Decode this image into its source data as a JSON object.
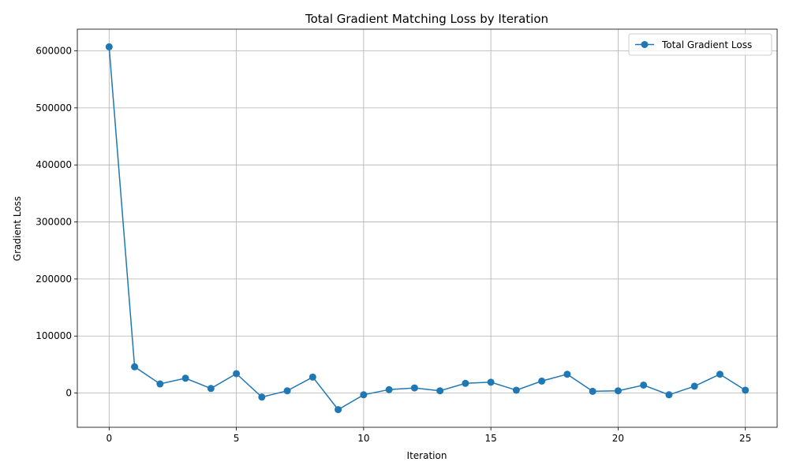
{
  "chart_data": {
    "type": "line",
    "title": "Total Gradient Matching Loss by Iteration",
    "xlabel": "Iteration",
    "ylabel": "Gradient Loss",
    "xlim": [
      -1.25,
      26.25
    ],
    "ylim": [
      -60000,
      638000
    ],
    "xticks": [
      0,
      5,
      10,
      15,
      20,
      25
    ],
    "yticks": [
      0,
      100000,
      200000,
      300000,
      400000,
      500000,
      600000
    ],
    "grid": true,
    "legend_position": "top-right",
    "color": "#1f77b4",
    "series": [
      {
        "name": "Total Gradient Loss",
        "x": [
          0,
          1,
          2,
          3,
          4,
          5,
          6,
          7,
          8,
          9,
          10,
          11,
          12,
          13,
          14,
          15,
          16,
          17,
          18,
          19,
          20,
          21,
          22,
          23,
          24,
          25
        ],
        "y": [
          607000,
          46000,
          16000,
          26000,
          8000,
          34000,
          -7000,
          4000,
          28000,
          -29000,
          -3000,
          6000,
          9000,
          4000,
          17000,
          19000,
          5000,
          21000,
          33000,
          3000,
          4000,
          14000,
          -3000,
          12000,
          33000,
          5000
        ]
      }
    ]
  }
}
